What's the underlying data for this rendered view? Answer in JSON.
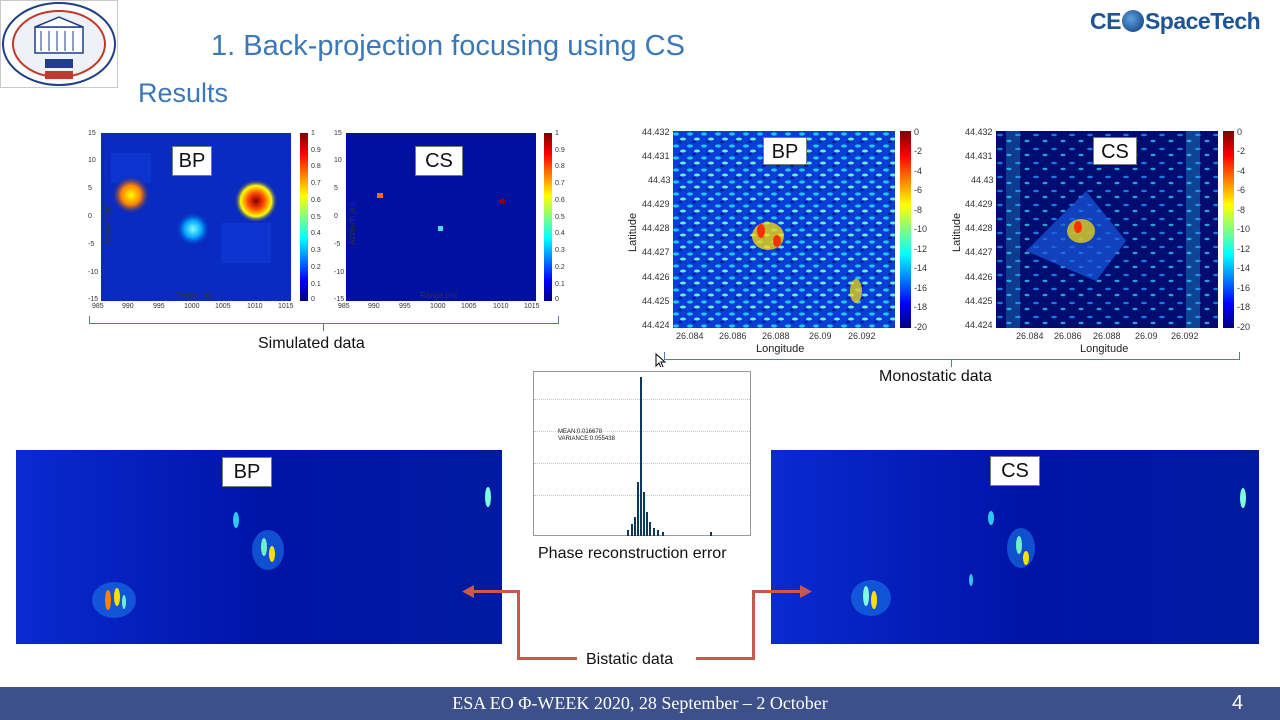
{
  "header": {
    "title": "1. Back-projection focusing using CS",
    "subtitle": "Results",
    "brand_left": "CE",
    "brand_right": "SpaceTech",
    "logo_name": "university-seal-logo"
  },
  "simulated": {
    "caption": "Simulated data",
    "bp_label": "BP",
    "cs_label": "CS",
    "x_axis_label": "Range [m]",
    "y_axis_label": "Azimuth [m]",
    "x_ticks": [
      "985",
      "990",
      "995",
      "1000",
      "1005",
      "1010",
      "1015"
    ],
    "y_ticks": [
      "15",
      "10",
      "5",
      "0",
      "-5",
      "-10",
      "-15"
    ],
    "colorbar_ticks": [
      "1",
      "0.9",
      "0.8",
      "0.7",
      "0.6",
      "0.5",
      "0.4",
      "0.3",
      "0.2",
      "0.1",
      "0"
    ]
  },
  "monostatic": {
    "caption": "Monostatic data",
    "bp_label": "BP",
    "cs_label": "CS",
    "x_axis_label": "Longitude",
    "y_axis_label": "Latitude",
    "x_ticks": [
      "26.084",
      "26.086",
      "26.088",
      "26.09",
      "26.092"
    ],
    "y_ticks": [
      "44.432",
      "44.431",
      "44.43",
      "44.429",
      "44.428",
      "44.427",
      "44.426",
      "44.425",
      "44.424"
    ],
    "colorbar_ticks": [
      "0",
      "-2",
      "-4",
      "-6",
      "-8",
      "-10",
      "-12",
      "-14",
      "-16",
      "-18",
      "-20"
    ]
  },
  "histogram": {
    "caption": "Phase reconstruction error",
    "mean_text": "MEAN:0.016678",
    "variance_text": "VARIANCE:0.055438"
  },
  "bistatic": {
    "caption": "Bistatic data",
    "bp_label": "BP",
    "cs_label": "CS"
  },
  "footer": {
    "text": "ESA EO Φ-WEEK 2020, 28 September – 2 October",
    "page_number": "4"
  },
  "colors": {
    "title_blue": "#3c78b9",
    "footer_bg": "#3d5089",
    "arrow_red": "#c9594c",
    "plot_bg": "#0014a8"
  }
}
